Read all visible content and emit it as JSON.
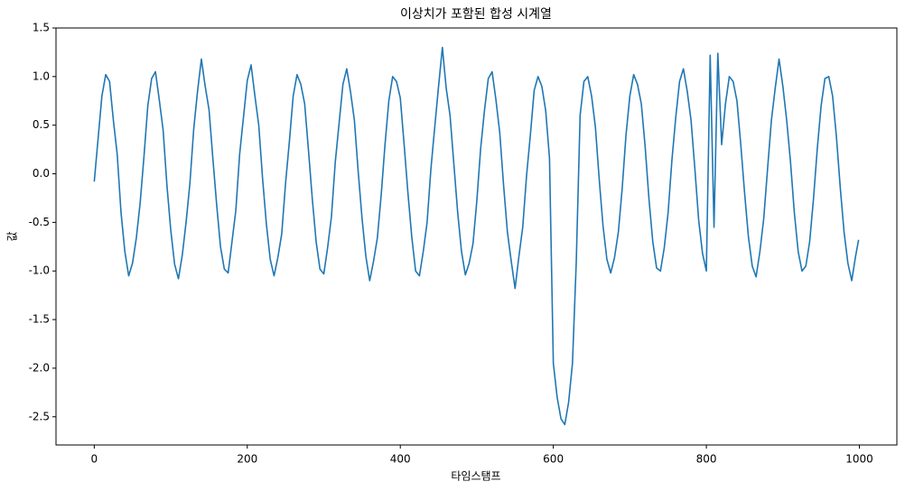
{
  "chart_data": {
    "type": "line",
    "title": "이상치가 포함된 합성 시계열",
    "x_label": "타임스탬프",
    "y_label": "값",
    "x": [
      0,
      5,
      10,
      15,
      20,
      25,
      30,
      35,
      40,
      45,
      50,
      55,
      60,
      65,
      70,
      75,
      80,
      85,
      90,
      95,
      100,
      105,
      110,
      115,
      120,
      125,
      130,
      135,
      140,
      145,
      150,
      155,
      160,
      165,
      170,
      175,
      180,
      185,
      190,
      195,
      200,
      205,
      210,
      215,
      220,
      225,
      230,
      235,
      240,
      245,
      250,
      255,
      260,
      265,
      270,
      275,
      280,
      285,
      290,
      295,
      300,
      305,
      310,
      315,
      320,
      325,
      330,
      335,
      340,
      345,
      350,
      355,
      360,
      365,
      370,
      375,
      380,
      385,
      390,
      395,
      400,
      405,
      410,
      415,
      420,
      425,
      430,
      435,
      440,
      445,
      450,
      455,
      460,
      465,
      470,
      475,
      480,
      485,
      490,
      495,
      500,
      505,
      510,
      515,
      520,
      525,
      530,
      535,
      540,
      545,
      550,
      555,
      560,
      565,
      570,
      575,
      580,
      585,
      590,
      595,
      600,
      605,
      610,
      615,
      620,
      625,
      630,
      635,
      640,
      645,
      650,
      655,
      660,
      665,
      670,
      675,
      680,
      685,
      690,
      695,
      700,
      705,
      710,
      715,
      720,
      725,
      730,
      735,
      740,
      745,
      750,
      755,
      760,
      765,
      770,
      775,
      780,
      785,
      790,
      795,
      800,
      805,
      810,
      815,
      820,
      825,
      830,
      835,
      840,
      845,
      850,
      855,
      860,
      865,
      870,
      875,
      880,
      885,
      890,
      895,
      900,
      905,
      910,
      915,
      920,
      925,
      930,
      935,
      940,
      945,
      950,
      955,
      960,
      965,
      970,
      975,
      980,
      985,
      990,
      995,
      999
    ],
    "series": [
      {
        "color": "#1f77b4",
        "values": [
          -0.08,
          0.36,
          0.8,
          1.02,
          0.95,
          0.55,
          0.2,
          -0.4,
          -0.8,
          -1.05,
          -0.92,
          -0.66,
          -0.3,
          0.18,
          0.7,
          0.98,
          1.05,
          0.76,
          0.45,
          -0.12,
          -0.58,
          -0.93,
          -1.08,
          -0.84,
          -0.5,
          -0.1,
          0.46,
          0.85,
          1.18,
          0.9,
          0.66,
          0.16,
          -0.32,
          -0.75,
          -0.98,
          -1.02,
          -0.7,
          -0.38,
          0.2,
          0.58,
          0.96,
          1.12,
          0.8,
          0.5,
          -0.05,
          -0.52,
          -0.88,
          -1.05,
          -0.86,
          -0.62,
          -0.1,
          0.33,
          0.8,
          1.02,
          0.92,
          0.72,
          0.24,
          -0.26,
          -0.7,
          -0.98,
          -1.03,
          -0.76,
          -0.44,
          0.12,
          0.52,
          0.92,
          1.08,
          0.84,
          0.55,
          0.02,
          -0.46,
          -0.85,
          -1.1,
          -0.9,
          -0.66,
          -0.22,
          0.3,
          0.75,
          1.0,
          0.95,
          0.78,
          0.3,
          -0.2,
          -0.65,
          -1.0,
          -1.05,
          -0.8,
          -0.5,
          0.05,
          0.48,
          0.9,
          1.3,
          0.88,
          0.6,
          0.1,
          -0.4,
          -0.8,
          -1.04,
          -0.92,
          -0.72,
          -0.28,
          0.26,
          0.65,
          0.98,
          1.05,
          0.76,
          0.42,
          -0.12,
          -0.6,
          -0.9,
          -1.18,
          -0.85,
          -0.55,
          -0.02,
          0.4,
          0.86,
          1.0,
          0.9,
          0.65,
          0.16,
          -1.95,
          -2.3,
          -2.52,
          -2.58,
          -2.35,
          -1.95,
          -0.9,
          0.6,
          0.95,
          1.0,
          0.8,
          0.48,
          -0.06,
          -0.54,
          -0.88,
          -1.02,
          -0.86,
          -0.6,
          -0.15,
          0.4,
          0.8,
          1.02,
          0.92,
          0.72,
          0.28,
          -0.26,
          -0.7,
          -0.97,
          -1.0,
          -0.76,
          -0.4,
          0.14,
          0.58,
          0.95,
          1.08,
          0.85,
          0.55,
          0.05,
          -0.48,
          -0.82,
          -1.0,
          1.22,
          -0.55,
          1.24,
          0.3,
          0.72,
          1.0,
          0.95,
          0.75,
          0.3,
          -0.2,
          -0.65,
          -0.95,
          -1.06,
          -0.8,
          -0.46,
          0.05,
          0.55,
          0.88,
          1.18,
          0.9,
          0.55,
          0.12,
          -0.4,
          -0.8,
          -1.0,
          -0.95,
          -0.7,
          -0.26,
          0.26,
          0.7,
          0.98,
          1.0,
          0.8,
          0.38,
          -0.14,
          -0.6,
          -0.92,
          -1.1,
          -0.85,
          -0.68
        ]
      }
    ],
    "xlim": [
      -50,
      1049
    ],
    "ylim": [
      -2.79,
      1.5
    ],
    "xticks": [
      0,
      200,
      400,
      600,
      800,
      1000
    ],
    "yticks": [
      1.5,
      {
        "value": 1.0,
        "label": "1.0"
      },
      0.5,
      {
        "value": 0.0,
        "label": "0.0"
      },
      -0.5,
      {
        "value": -1.0,
        "label": "-1.0"
      },
      -1.5,
      {
        "value": -2.0,
        "label": "-2.0"
      },
      -2.5
    ],
    "grid": false
  }
}
